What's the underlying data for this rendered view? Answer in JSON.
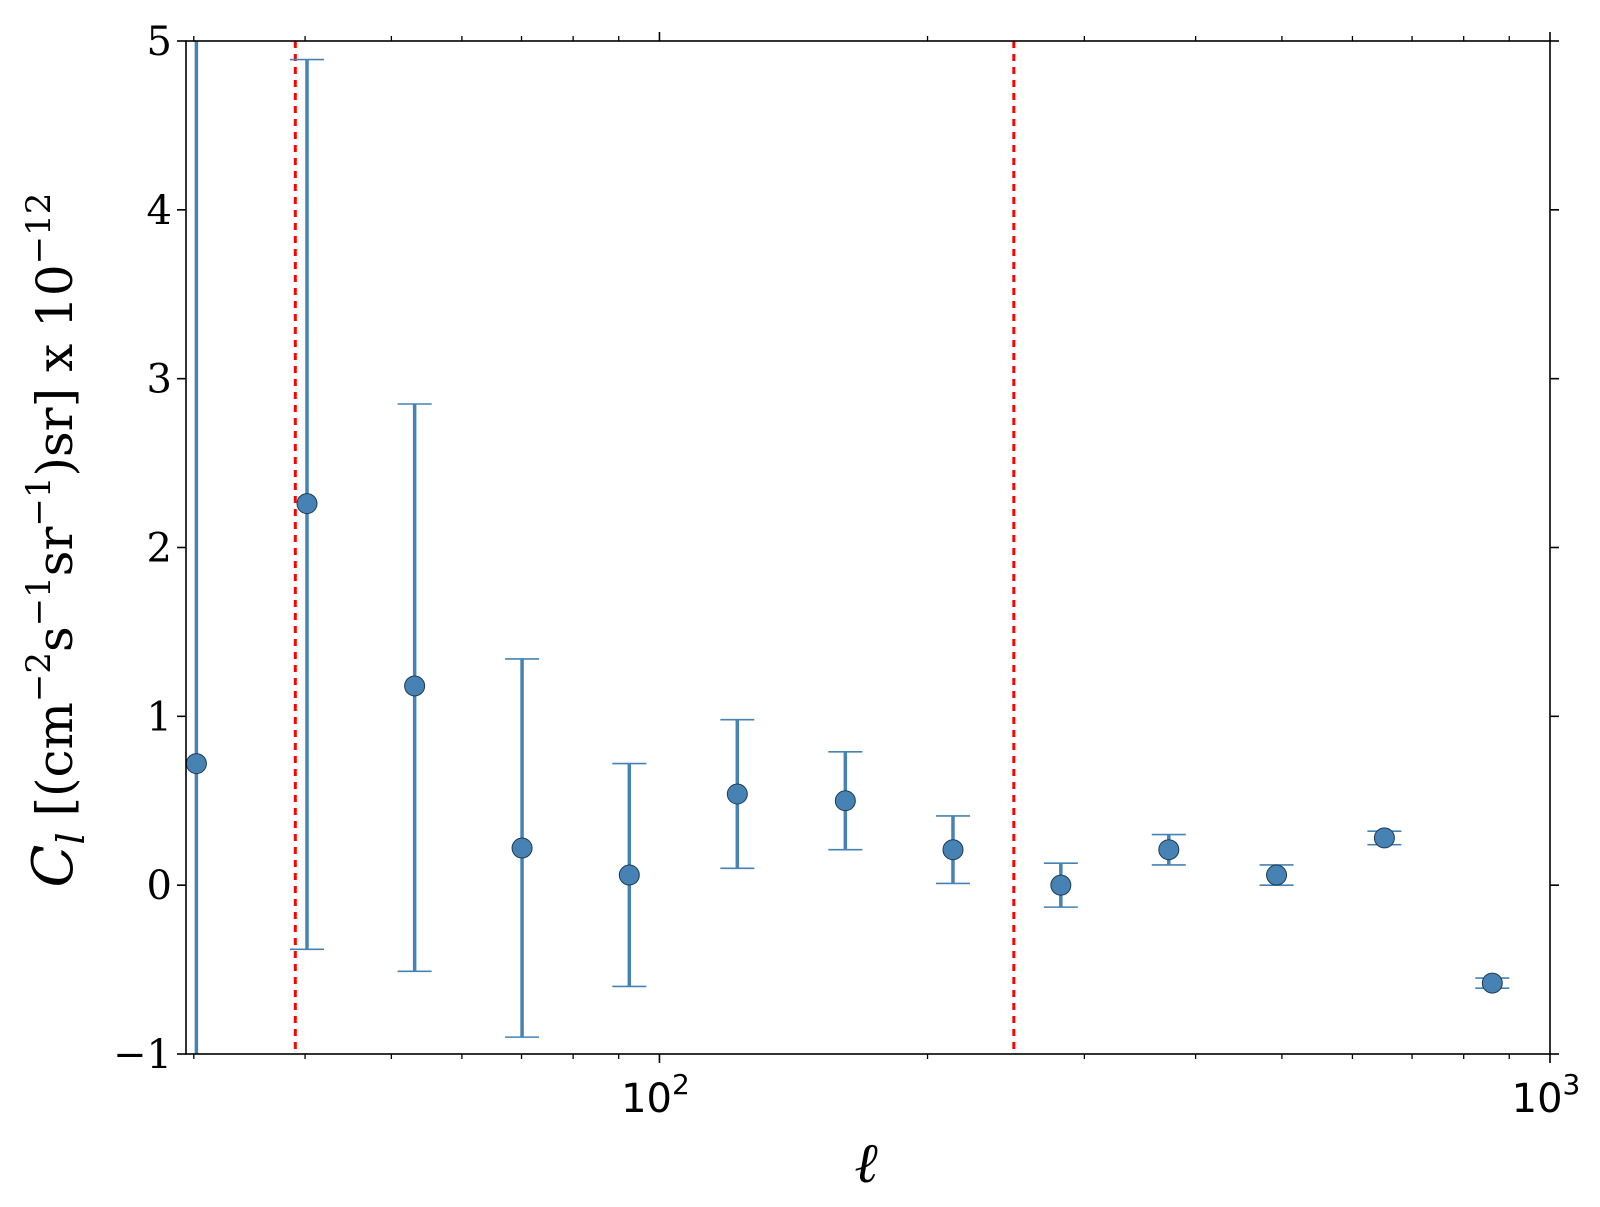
{
  "chart_data": {
    "type": "scatter",
    "xscale": "log",
    "xlim": [
      29.4,
      1000
    ],
    "ylim": [
      -1,
      5
    ],
    "grid": false,
    "xlabel": "ℓ",
    "ylabel": "C_l [(cm^-2 s^-1 sr^-1) sr] x 10^-12",
    "xtick_labels": [
      {
        "value": 100,
        "label": "10",
        "exp": "2"
      },
      {
        "value": 1000,
        "label": "10",
        "exp": "3"
      }
    ],
    "ytick_labels": [
      "−1",
      "0",
      "1",
      "2",
      "3",
      "4",
      "5"
    ],
    "yticks": [
      -1,
      0,
      1,
      2,
      3,
      4,
      5
    ],
    "vlines": [
      {
        "x": 39,
        "color": "#ff0000",
        "style": "dotted"
      },
      {
        "x": 250,
        "color": "#ff0000",
        "style": "dotted"
      }
    ],
    "series": [
      {
        "color": "#4682b4",
        "points": [
          {
            "x": 30.2,
            "y": 0.72,
            "ylo": -1.0,
            "yhi": 5.0
          },
          {
            "x": 40.2,
            "y": 2.26,
            "ylo": -0.38,
            "yhi": 4.89
          },
          {
            "x": 53.1,
            "y": 1.18,
            "ylo": -0.51,
            "yhi": 2.85
          },
          {
            "x": 70.1,
            "y": 0.22,
            "ylo": -0.9,
            "yhi": 1.34
          },
          {
            "x": 92.5,
            "y": 0.06,
            "ylo": -0.6,
            "yhi": 0.72
          },
          {
            "x": 122.3,
            "y": 0.54,
            "ylo": 0.1,
            "yhi": 0.98
          },
          {
            "x": 161.7,
            "y": 0.5,
            "ylo": 0.21,
            "yhi": 0.79
          },
          {
            "x": 213.6,
            "y": 0.21,
            "ylo": 0.01,
            "yhi": 0.41
          },
          {
            "x": 282.3,
            "y": 0.0,
            "ylo": -0.13,
            "yhi": 0.13
          },
          {
            "x": 373.2,
            "y": 0.21,
            "ylo": 0.12,
            "yhi": 0.3
          },
          {
            "x": 493.1,
            "y": 0.06,
            "ylo": 0.0,
            "yhi": 0.12
          },
          {
            "x": 651.7,
            "y": 0.28,
            "ylo": 0.24,
            "yhi": 0.32
          },
          {
            "x": 861.4,
            "y": -0.58,
            "ylo": -0.61,
            "yhi": -0.55
          }
        ]
      }
    ]
  }
}
